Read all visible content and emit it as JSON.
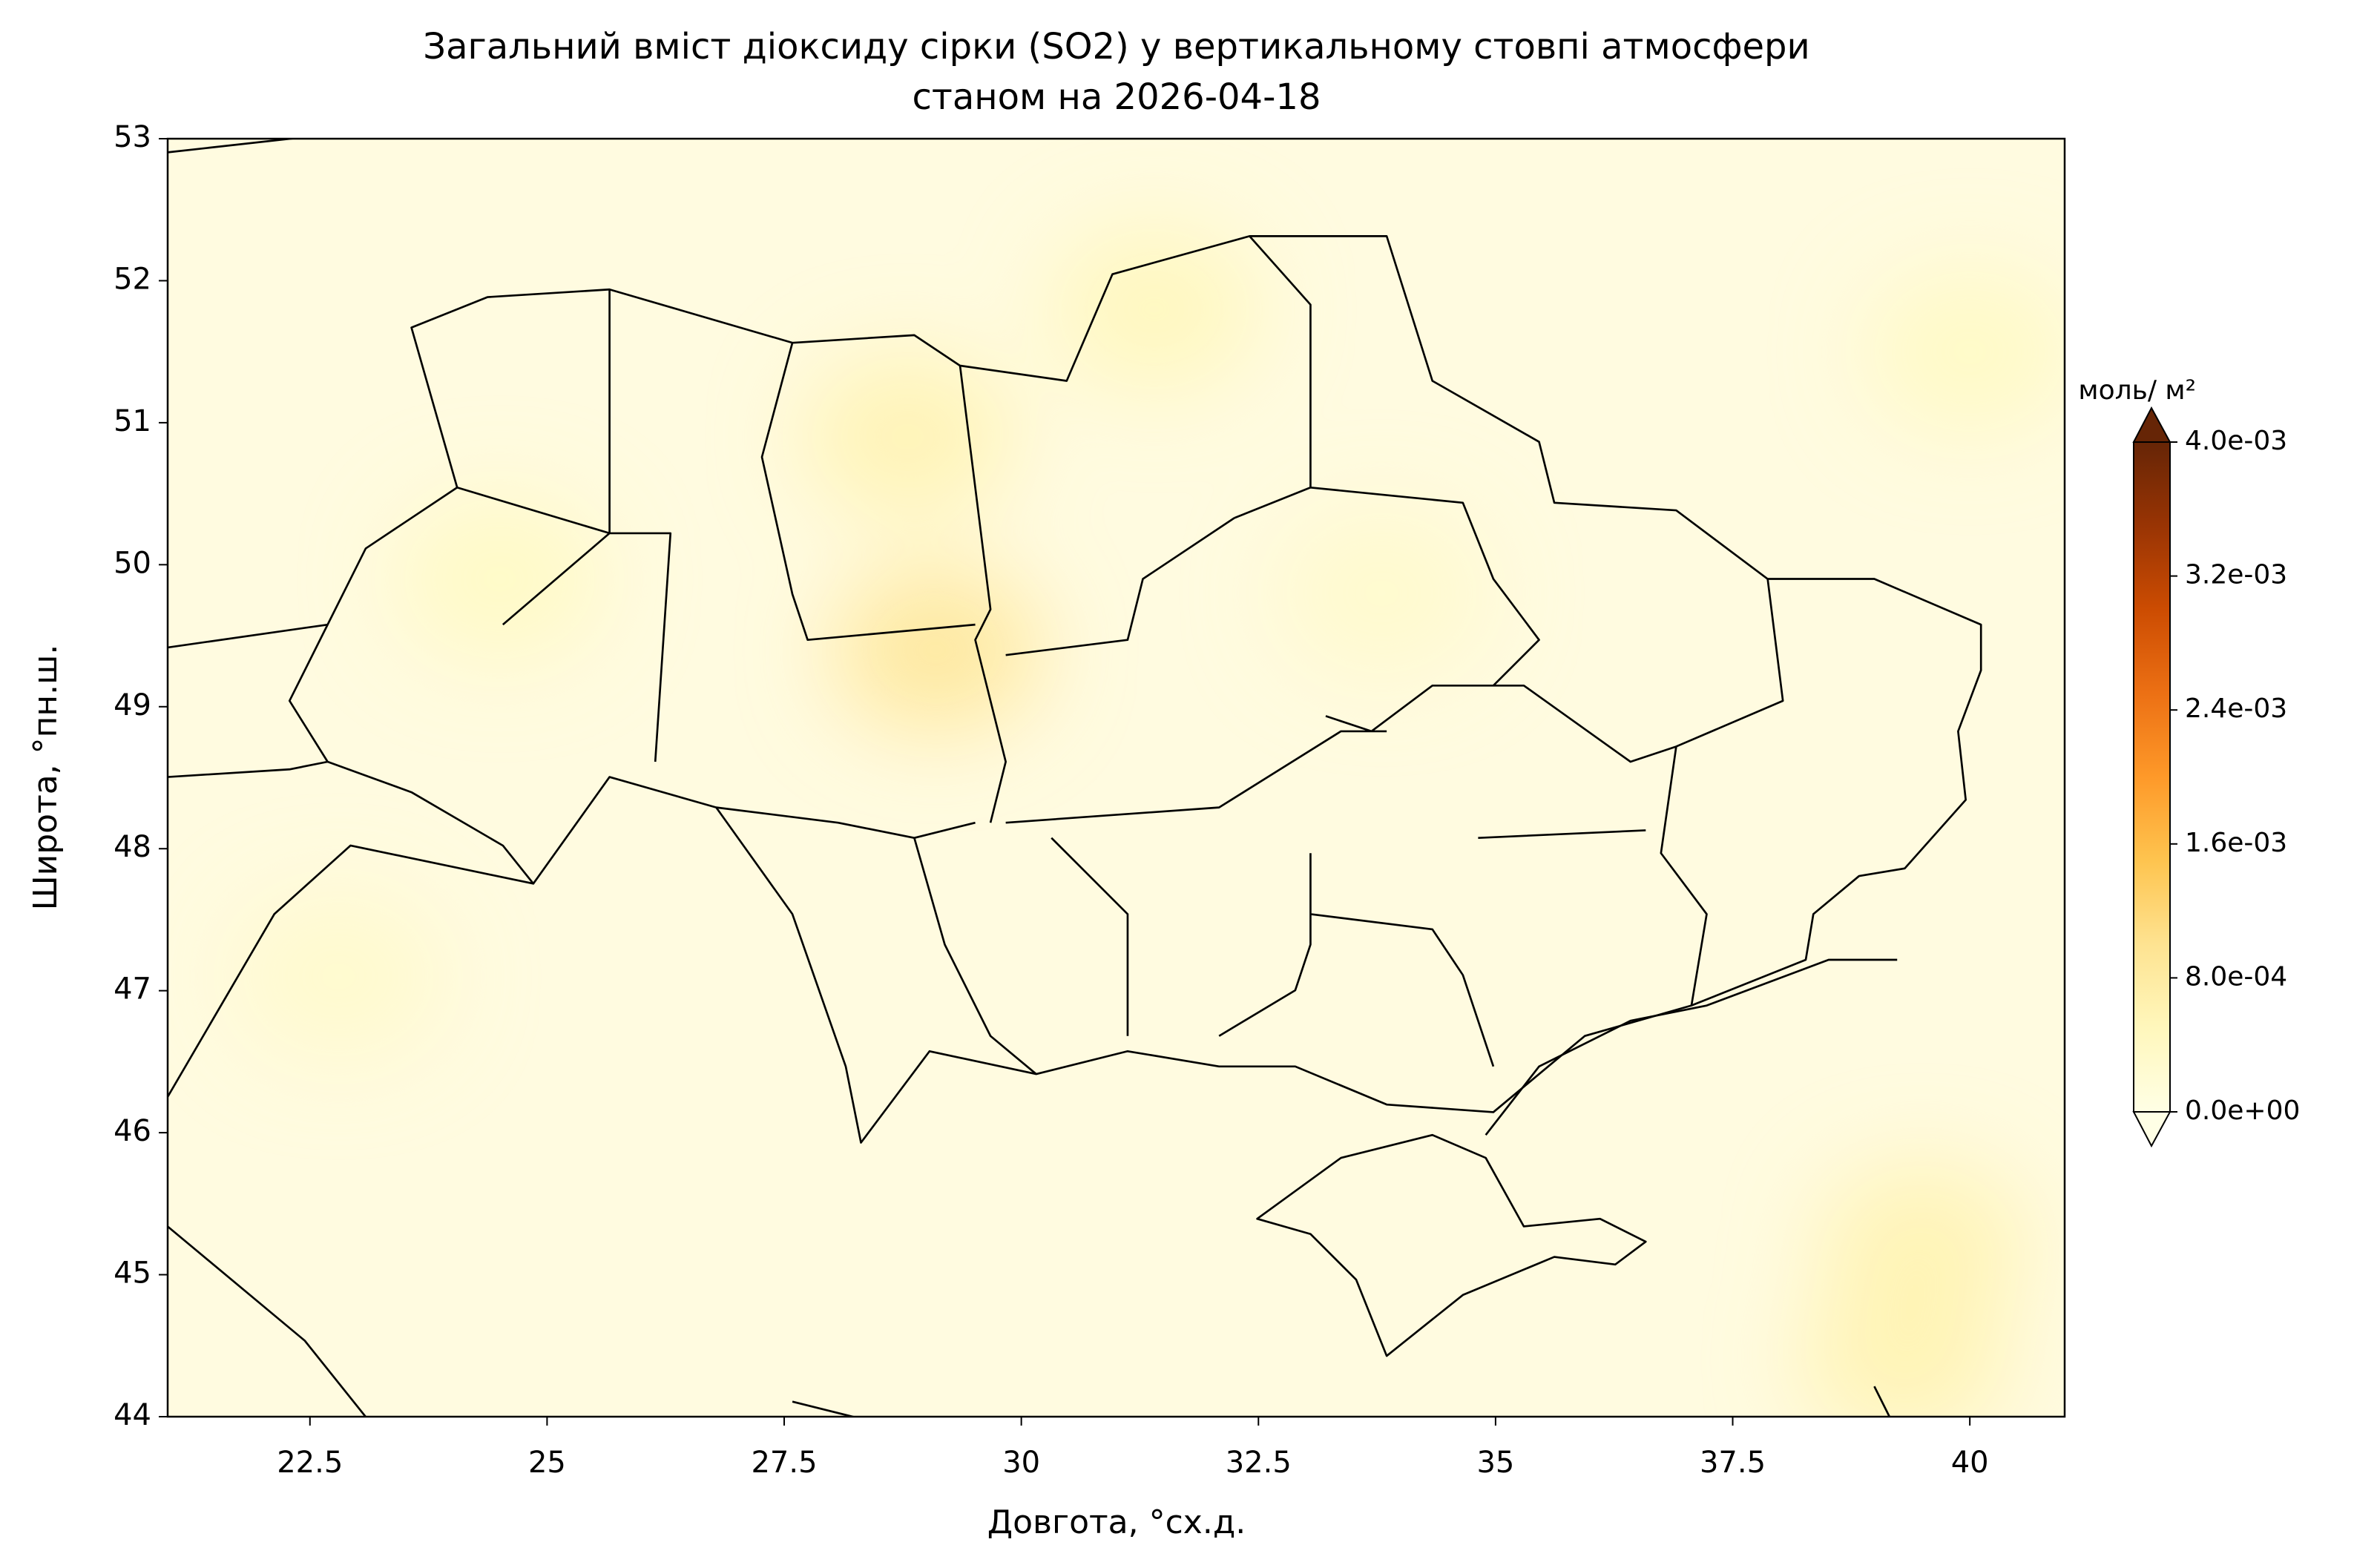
{
  "chart_data": {
    "type": "heatmap-map",
    "title": "Загальний вміст діоксиду сірки (SO2) у вертикальному стовпі атмосфери",
    "subtitle": "станом на 2026-04-18",
    "xlabel": "Довгота, °сх.д.",
    "ylabel": "Широта, °пн.ш.",
    "xlim": [
      21,
      41
    ],
    "ylim": [
      44,
      53
    ],
    "xticks": [
      22.5,
      25.0,
      27.5,
      30.0,
      32.5,
      35.0,
      37.5,
      40.0
    ],
    "yticks": [
      44,
      45,
      46,
      47,
      48,
      49,
      50,
      51,
      52,
      53
    ],
    "colormap": "YlOrBr",
    "colorbar_label": "моль/ м²",
    "clim": [
      0,
      0.004
    ],
    "colorbar_ticks": [
      {
        "value": 0,
        "label": "0.0e+00"
      },
      {
        "value": 0.0008,
        "label": "8.0e-04"
      },
      {
        "value": 0.0016,
        "label": "1.6e-03"
      },
      {
        "value": 0.0024,
        "label": "2.4e-03"
      },
      {
        "value": 0.0032,
        "label": "3.2e-03"
      },
      {
        "value": 0.004,
        "label": "4.0e-03"
      }
    ],
    "points": {
      "lon": [
        29.1,
        28.8,
        31.4,
        39.5,
        39.3,
        40.0,
        24.5,
        22.8,
        33.8
      ],
      "lat": [
        49.4,
        50.9,
        51.8,
        45.2,
        44.4,
        51.5,
        49.9,
        47.1,
        49.8
      ],
      "values": [
        0.0009,
        0.0006,
        0.0005,
        0.0006,
        0.0006,
        0.0004,
        0.0004,
        0.0003,
        0.0003
      ]
    }
  }
}
